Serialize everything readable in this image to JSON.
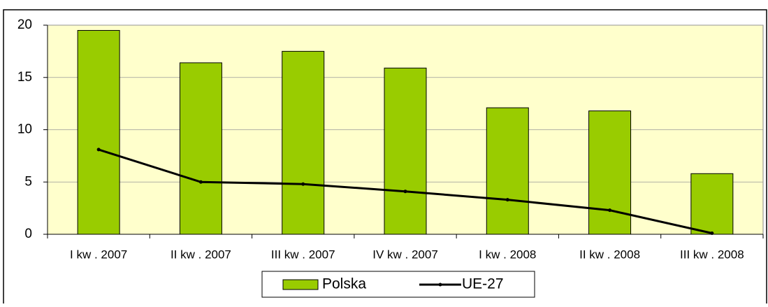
{
  "chart_data": {
    "type": "bar",
    "categories": [
      "I kw . 2007",
      "II kw . 2007",
      "III kw . 2007",
      "IV kw . 2007",
      "I kw . 2008",
      "II kw . 2008",
      "III kw . 2008"
    ],
    "series": [
      {
        "name": "Polska",
        "type": "bar",
        "color": "#99cc00",
        "values": [
          19.5,
          16.4,
          17.5,
          15.9,
          12.1,
          11.8,
          5.8
        ]
      },
      {
        "name": "UE-27",
        "type": "line",
        "color": "#000000",
        "values": [
          8.1,
          5.0,
          4.8,
          4.1,
          3.3,
          2.3,
          0.1
        ]
      }
    ],
    "ylim": [
      0,
      20
    ],
    "yticks": [
      0,
      5,
      10,
      15,
      20
    ],
    "grid": true,
    "legend": "bottom"
  }
}
